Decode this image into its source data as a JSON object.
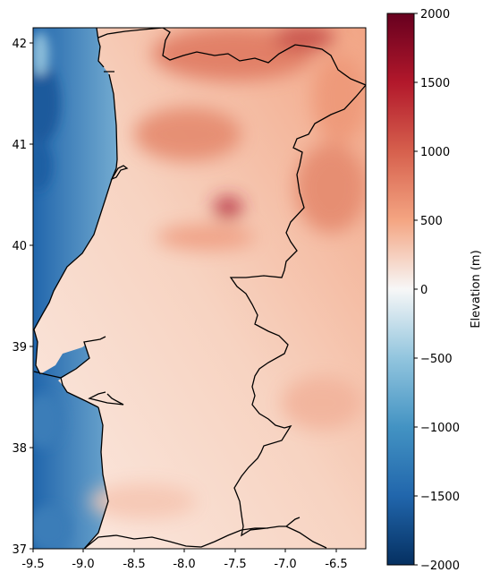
{
  "map": {
    "region": "Portugal",
    "x_ticks": [
      "-9.5",
      "-9.0",
      "-8.5",
      "-8.0",
      "-7.5",
      "-7.0",
      "-6.5"
    ],
    "y_ticks": [
      "42",
      "41",
      "40",
      "39",
      "38",
      "37"
    ],
    "x_range": [
      -9.5,
      -6.2
    ],
    "y_range": [
      37.0,
      42.15
    ],
    "colormap": "RdBu_r",
    "colors": {
      "low": "#053061",
      "mid": "#f7f7f7",
      "high": "#67001f",
      "border": "#000000"
    }
  },
  "colorbar": {
    "label": "Elevation (m)",
    "ticks": [
      "2000",
      "1500",
      "1000",
      "500",
      "0",
      "−500",
      "−1000",
      "−1500",
      "−2000"
    ],
    "range": [
      -2000,
      2000
    ]
  }
}
